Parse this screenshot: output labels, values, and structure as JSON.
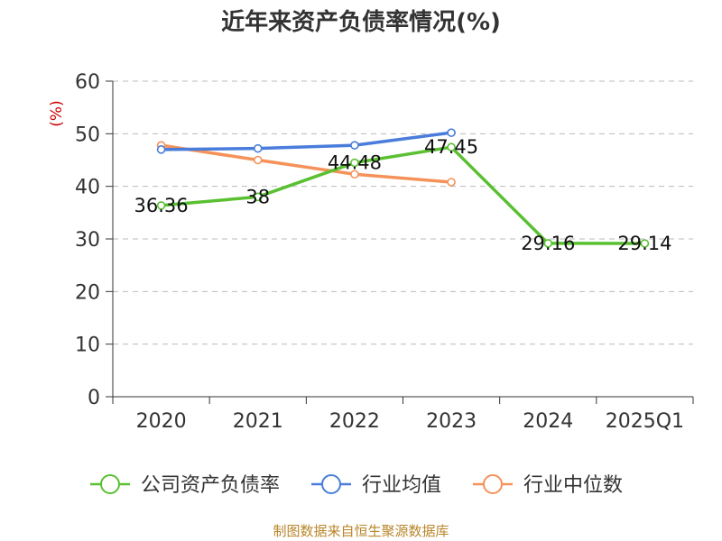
{
  "chart_data": {
    "type": "line",
    "title": "近年来资产负债率情况(%)",
    "ylabel": "(%)",
    "xlabel": "",
    "categories": [
      "2020",
      "2021",
      "2022",
      "2023",
      "2024",
      "2025Q1"
    ],
    "ylim": [
      0,
      60
    ],
    "yticks": [
      "0",
      "10",
      "20",
      "30",
      "40",
      "50",
      "60"
    ],
    "grid": true,
    "legend_position": "bottom",
    "series": [
      {
        "name": "公司资产负债率",
        "color": "#5ac032",
        "values": [
          36.36,
          38,
          44.48,
          47.45,
          29.16,
          29.14
        ],
        "data_labels": [
          "36.36",
          "38",
          "44.48",
          "47.45",
          "29.16",
          "29.14"
        ]
      },
      {
        "name": "行业均值",
        "color": "#4a7ddb",
        "values": [
          47.0,
          47.2,
          47.8,
          50.2,
          null,
          null
        ]
      },
      {
        "name": "行业中位数",
        "color": "#f5925a",
        "values": [
          47.8,
          45.0,
          42.3,
          40.8,
          null,
          null
        ]
      }
    ]
  },
  "footer": {
    "source": "制图数据来自恒生聚源数据库"
  }
}
